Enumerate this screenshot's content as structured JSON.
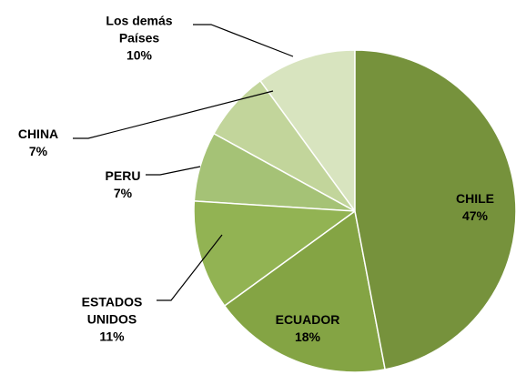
{
  "chart_data": {
    "type": "pie",
    "categories": [
      "CHILE",
      "ECUADOR",
      "ESTADOS UNIDOS",
      "PERU",
      "CHINA",
      "Los demás Países"
    ],
    "values": [
      47,
      18,
      11,
      7,
      7,
      10
    ],
    "value_labels": [
      "47%",
      "18%",
      "11%",
      "7%",
      "7%",
      "10%"
    ],
    "colors": [
      "#76923c",
      "#84a444",
      "#92b353",
      "#a5c276",
      "#c2d59b",
      "#d8e4bf"
    ]
  }
}
